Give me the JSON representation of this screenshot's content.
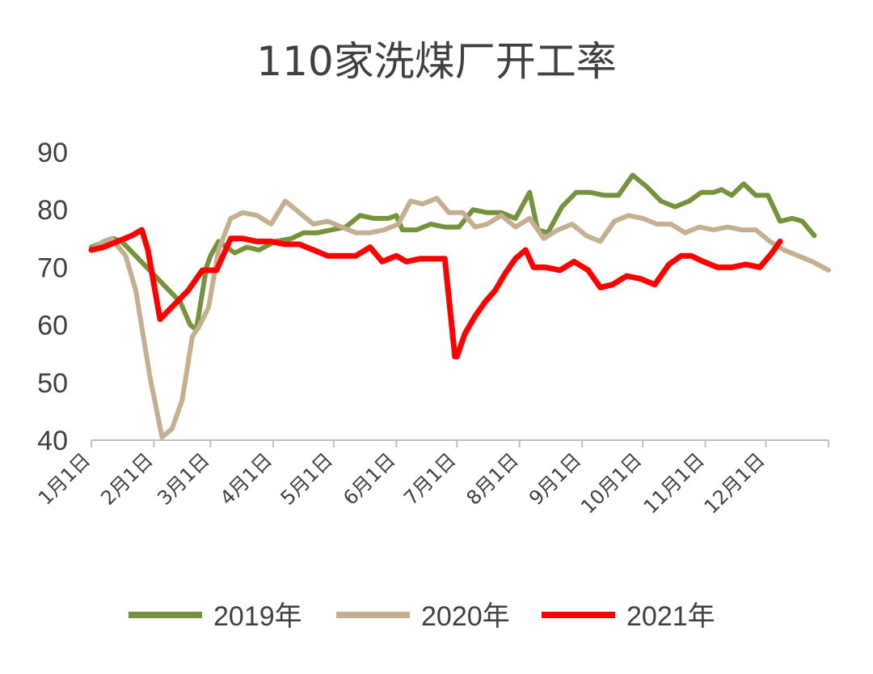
{
  "chart_data": {
    "type": "line",
    "title": "110家洗煤厂开工率",
    "xlabel": "",
    "ylabel": "",
    "ylim": [
      40,
      90
    ],
    "yticks": [
      "90",
      "80",
      "70",
      "60",
      "50",
      "40"
    ],
    "xlim": [
      1,
      366
    ],
    "categories": [
      "1月1日",
      "2月1日",
      "3月1日",
      "4月1日",
      "5月1日",
      "6月1日",
      "7月1日",
      "8月1日",
      "9月1日",
      "10月1日",
      "11月1日",
      "12月1日"
    ],
    "category_days": [
      1,
      32,
      60,
      91,
      121,
      152,
      182,
      213,
      244,
      274,
      305,
      335
    ],
    "grid": false,
    "legend": "bottom",
    "series": [
      {
        "name": "2019年",
        "color": "#76923c",
        "x": [
          1,
          12,
          16,
          45,
          50,
          53,
          58,
          60,
          64,
          72,
          78,
          84,
          92,
          100,
          106,
          113,
          120,
          127,
          134,
          141,
          148,
          152,
          155,
          162,
          169,
          176,
          183,
          190,
          197,
          204,
          211,
          218,
          222,
          227,
          234,
          241,
          248,
          255,
          262,
          269,
          276,
          283,
          290,
          297,
          303,
          309,
          313,
          318,
          324,
          330,
          336,
          342,
          348,
          353,
          359
        ],
        "y": [
          73.5,
          75,
          74.5,
          64,
          60,
          59.2,
          70,
          72,
          74.5,
          72.5,
          73.5,
          73,
          74.5,
          75,
          76,
          76,
          76.5,
          77,
          79,
          78.5,
          78.5,
          79,
          76.5,
          76.5,
          77.5,
          77,
          77,
          80,
          79.5,
          79.5,
          78.5,
          83,
          76.5,
          76,
          80.5,
          83,
          83,
          82.5,
          82.5,
          86,
          84,
          81.5,
          80.5,
          81.5,
          83,
          83,
          83.5,
          82.5,
          84.5,
          82.5,
          82.5,
          78,
          78.5,
          78,
          75.5
        ]
      },
      {
        "name": "2020年",
        "color": "#c4b091",
        "x": [
          1,
          7,
          11,
          18,
          23,
          30,
          36,
          41,
          44,
          46,
          51,
          54,
          59,
          64,
          70,
          76,
          83,
          90,
          97,
          104,
          111,
          118,
          125,
          132,
          139,
          146,
          153,
          159,
          165,
          172,
          178,
          185,
          191,
          197,
          204,
          211,
          218,
          225,
          232,
          239,
          246,
          253,
          260,
          267,
          274,
          281,
          288,
          295,
          302,
          309,
          316,
          323,
          330,
          337,
          344,
          351,
          358,
          366
        ],
        "y": [
          73,
          74.5,
          75,
          72,
          66,
          51,
          40.5,
          42,
          45,
          47,
          58,
          59.5,
          63,
          73,
          78.5,
          79.5,
          79,
          77.5,
          81.5,
          79.5,
          77.5,
          78,
          77,
          76,
          76,
          76.5,
          77.5,
          81.5,
          81,
          82,
          79.5,
          79.5,
          77,
          77.5,
          79,
          77,
          78.5,
          75,
          76.5,
          77.5,
          75.5,
          74.5,
          78,
          79,
          78.5,
          77.5,
          77.5,
          76,
          77,
          76.5,
          77,
          76.5,
          76.5,
          74.5,
          73,
          72,
          71,
          69.5
        ]
      },
      {
        "name": "2021年",
        "color": "#ff0000",
        "x": [
          1,
          7,
          14,
          21,
          26,
          29,
          35,
          42,
          49,
          56,
          63,
          70,
          76,
          83,
          90,
          97,
          104,
          111,
          118,
          125,
          132,
          139,
          145,
          152,
          157,
          164,
          171,
          176,
          181,
          182,
          186,
          191,
          196,
          201,
          206,
          211,
          216,
          220,
          226,
          233,
          240,
          247,
          253,
          259,
          266,
          273,
          280,
          287,
          293,
          298,
          304,
          311,
          318,
          325,
          332,
          338,
          342
        ],
        "y": [
          73,
          73.5,
          74.5,
          75.5,
          76.5,
          73,
          61,
          63.5,
          66,
          69.5,
          69.5,
          75,
          75,
          74.5,
          74.5,
          74,
          74,
          73,
          72,
          72,
          72,
          73.5,
          71,
          72,
          71,
          71.5,
          71.5,
          71.5,
          54.5,
          54.5,
          58.5,
          61.5,
          64,
          66,
          69,
          71.5,
          73,
          70,
          70,
          69.5,
          71,
          69.5,
          66.5,
          67,
          68.5,
          68,
          67,
          70.5,
          72,
          72,
          71,
          70,
          70,
          70.5,
          70,
          72.5,
          74.5
        ]
      }
    ]
  }
}
